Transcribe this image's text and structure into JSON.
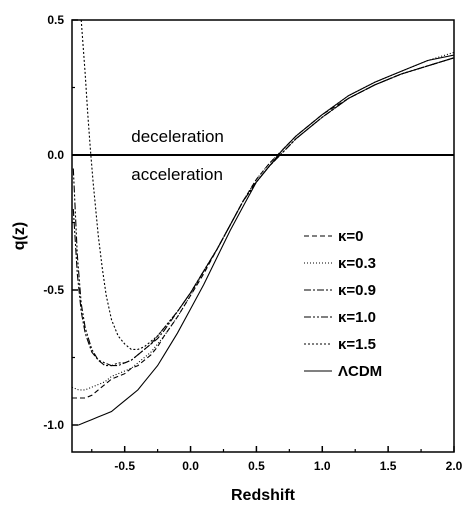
{
  "chart_data": {
    "type": "line",
    "title": "",
    "xlabel": "Redshift",
    "ylabel": "q(z)",
    "xlim": [
      -0.9,
      2.0
    ],
    "ylim": [
      -1.1,
      0.5
    ],
    "x_ticks": [
      "-0.5",
      "0.0",
      "0.5",
      "1.0",
      "1.5",
      "2.0"
    ],
    "x_tick_values": [
      -0.5,
      0.0,
      0.5,
      1.0,
      1.5,
      2.0
    ],
    "y_ticks": [
      "0.5",
      "0.0",
      "-0.5",
      "-1.0"
    ],
    "y_tick_values": [
      0.5,
      0.0,
      -0.5,
      -1.0
    ],
    "grid": false,
    "legend_position": "right",
    "annotations": [
      {
        "text": "deceleration",
        "x": -0.45,
        "y": 0.07
      },
      {
        "text": "acceleration",
        "x": -0.45,
        "y": -0.07
      }
    ],
    "reference_line": {
      "y": 0.0
    },
    "series": [
      {
        "name": "κ=0",
        "dash": "5,3",
        "x": [
          -0.9,
          -0.85,
          -0.8,
          -0.75,
          -0.7,
          -0.65,
          -0.6,
          -0.55,
          -0.5,
          -0.45,
          -0.4,
          -0.35,
          -0.3,
          -0.25,
          -0.2,
          -0.1,
          0.0,
          0.1,
          0.2,
          0.3,
          0.4,
          0.5,
          0.6,
          0.7,
          0.8,
          0.9,
          1.0,
          1.2,
          1.4,
          1.6,
          1.8,
          2.0
        ],
        "y": [
          -0.9,
          -0.9,
          -0.9,
          -0.89,
          -0.87,
          -0.85,
          -0.83,
          -0.82,
          -0.81,
          -0.79,
          -0.78,
          -0.76,
          -0.74,
          -0.71,
          -0.67,
          -0.6,
          -0.52,
          -0.44,
          -0.35,
          -0.26,
          -0.17,
          -0.09,
          -0.03,
          0.02,
          0.07,
          0.11,
          0.15,
          0.21,
          0.26,
          0.3,
          0.33,
          0.36
        ]
      },
      {
        "name": "κ=0.3",
        "dash": "1,2",
        "x": [
          -0.9,
          -0.85,
          -0.8,
          -0.75,
          -0.7,
          -0.65,
          -0.6,
          -0.55,
          -0.5,
          -0.45,
          -0.4,
          -0.35,
          -0.3,
          -0.25,
          -0.2,
          -0.1,
          0.0,
          0.1,
          0.2,
          0.3,
          0.4,
          0.5,
          0.6,
          0.7,
          0.8,
          0.9,
          1.0,
          1.2,
          1.4,
          1.6,
          1.8,
          2.0
        ],
        "y": [
          -0.86,
          -0.87,
          -0.87,
          -0.86,
          -0.85,
          -0.84,
          -0.82,
          -0.81,
          -0.8,
          -0.79,
          -0.77,
          -0.75,
          -0.73,
          -0.7,
          -0.67,
          -0.6,
          -0.52,
          -0.43,
          -0.35,
          -0.26,
          -0.17,
          -0.09,
          -0.03,
          0.02,
          0.07,
          0.11,
          0.15,
          0.22,
          0.27,
          0.31,
          0.35,
          0.38
        ]
      },
      {
        "name": "κ=0.9",
        "dash": "7,2,2,2",
        "x": [
          -0.89,
          -0.86,
          -0.83,
          -0.8,
          -0.75,
          -0.7,
          -0.65,
          -0.6,
          -0.55,
          -0.5,
          -0.45,
          -0.4,
          -0.35,
          -0.3,
          -0.25,
          -0.2,
          -0.1,
          0.0,
          0.1,
          0.2,
          0.3,
          0.4,
          0.5,
          0.6,
          0.7,
          0.8,
          0.9,
          1.0,
          1.2,
          1.4,
          1.6,
          1.8,
          2.0
        ],
        "y": [
          -0.2,
          -0.44,
          -0.58,
          -0.66,
          -0.73,
          -0.76,
          -0.78,
          -0.78,
          -0.78,
          -0.77,
          -0.76,
          -0.74,
          -0.72,
          -0.7,
          -0.68,
          -0.65,
          -0.58,
          -0.51,
          -0.43,
          -0.35,
          -0.26,
          -0.17,
          -0.1,
          -0.04,
          0.01,
          0.06,
          0.1,
          0.14,
          0.21,
          0.26,
          0.3,
          0.33,
          0.36
        ]
      },
      {
        "name": "κ=1.0",
        "dash": "7,2,2,2,2,2",
        "x": [
          -0.89,
          -0.86,
          -0.83,
          -0.8,
          -0.75,
          -0.7,
          -0.65,
          -0.6,
          -0.55,
          -0.5,
          -0.45,
          -0.4,
          -0.35,
          -0.3,
          -0.25,
          -0.2,
          -0.1,
          0.0,
          0.1,
          0.2,
          0.3,
          0.4,
          0.5,
          0.6,
          0.7,
          0.8,
          0.9,
          1.0,
          1.2,
          1.4,
          1.6,
          1.8,
          2.0
        ],
        "y": [
          -0.05,
          -0.37,
          -0.55,
          -0.64,
          -0.72,
          -0.76,
          -0.77,
          -0.78,
          -0.77,
          -0.77,
          -0.76,
          -0.74,
          -0.72,
          -0.7,
          -0.67,
          -0.64,
          -0.58,
          -0.51,
          -0.43,
          -0.35,
          -0.26,
          -0.17,
          -0.1,
          -0.04,
          0.01,
          0.06,
          0.1,
          0.14,
          0.21,
          0.26,
          0.3,
          0.33,
          0.36
        ]
      },
      {
        "name": "κ=1.5",
        "dash": "2,2",
        "x": [
          -0.83,
          -0.8,
          -0.78,
          -0.76,
          -0.74,
          -0.72,
          -0.7,
          -0.67,
          -0.64,
          -0.6,
          -0.55,
          -0.5,
          -0.45,
          -0.4,
          -0.35,
          -0.3,
          -0.25,
          -0.2,
          -0.1,
          0.0,
          0.1,
          0.2,
          0.3,
          0.4,
          0.5,
          0.6,
          0.7,
          0.8,
          0.9,
          1.0,
          1.2,
          1.4,
          1.6,
          1.8,
          2.0
        ],
        "y": [
          0.5,
          0.3,
          0.15,
          0.02,
          -0.1,
          -0.2,
          -0.3,
          -0.42,
          -0.52,
          -0.61,
          -0.67,
          -0.7,
          -0.72,
          -0.72,
          -0.71,
          -0.69,
          -0.67,
          -0.64,
          -0.58,
          -0.51,
          -0.43,
          -0.35,
          -0.26,
          -0.17,
          -0.1,
          -0.04,
          0.01,
          0.06,
          0.1,
          0.14,
          0.21,
          0.26,
          0.3,
          0.33,
          0.36
        ]
      },
      {
        "name": "ΛCDM",
        "dash": "",
        "x": [
          -0.9,
          -0.85,
          -0.8,
          -0.75,
          -0.7,
          -0.65,
          -0.6,
          -0.55,
          -0.5,
          -0.45,
          -0.4,
          -0.35,
          -0.3,
          -0.25,
          -0.2,
          -0.1,
          0.0,
          0.1,
          0.2,
          0.3,
          0.4,
          0.5,
          0.6,
          0.7,
          0.8,
          0.9,
          1.0,
          1.2,
          1.4,
          1.6,
          1.8,
          2.0
        ],
        "y": [
          -1.0,
          -1.0,
          -0.99,
          -0.98,
          -0.97,
          -0.96,
          -0.95,
          -0.93,
          -0.91,
          -0.89,
          -0.87,
          -0.84,
          -0.81,
          -0.78,
          -0.74,
          -0.66,
          -0.57,
          -0.48,
          -0.38,
          -0.28,
          -0.19,
          -0.1,
          -0.04,
          0.02,
          0.07,
          0.11,
          0.15,
          0.22,
          0.27,
          0.31,
          0.35,
          0.37
        ]
      }
    ]
  }
}
